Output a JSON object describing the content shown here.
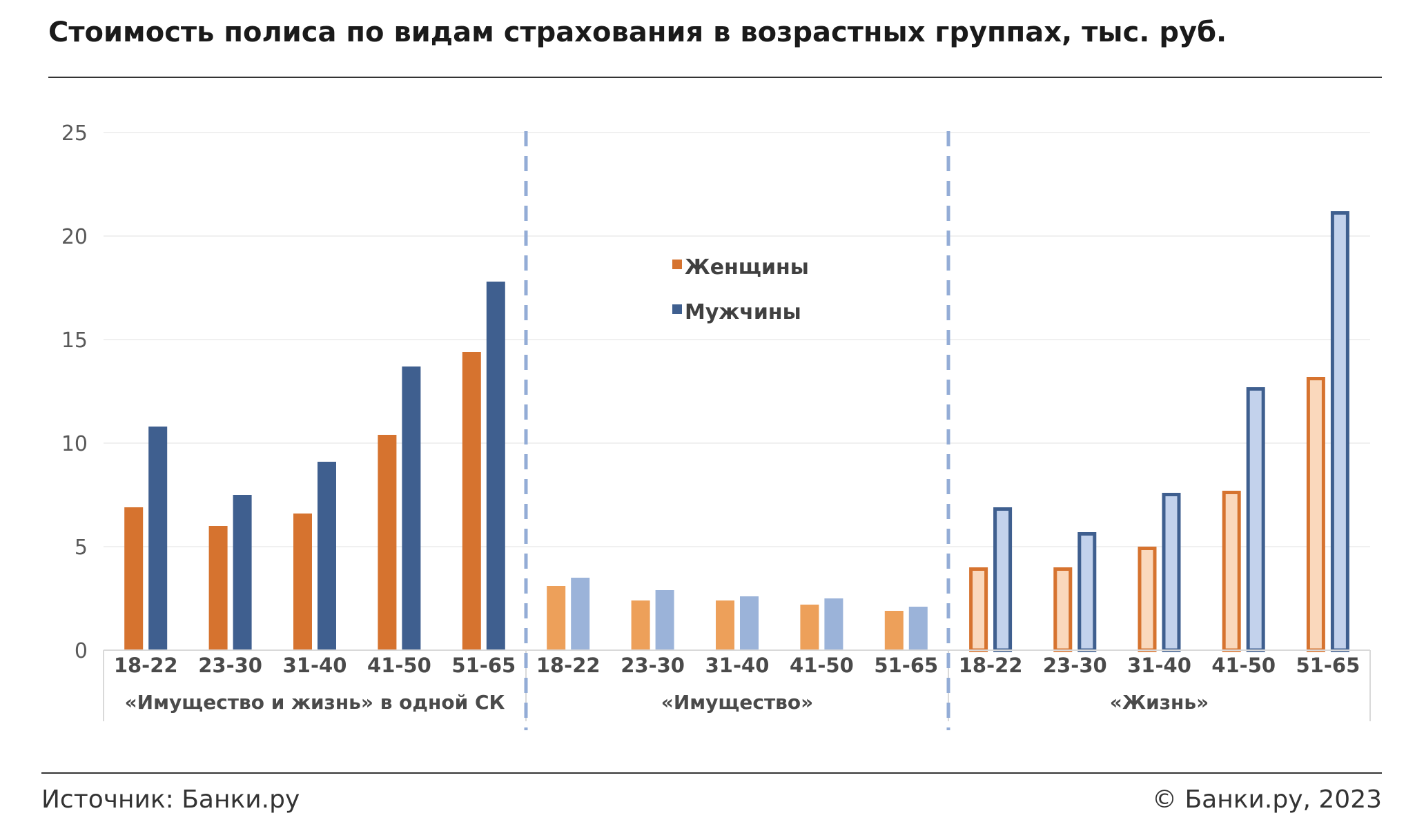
{
  "header": {
    "title": "Стоимость полиса по видам страхования в возрастных группах, тыс. руб."
  },
  "footer": {
    "source": "Источник: Банки.ру",
    "copyright": "© Банки.ру, 2023"
  },
  "colors": {
    "women_solid": "#D6732F",
    "men_solid": "#3F5F8F",
    "women_light": "#EDA05A",
    "men_light": "#9BB3D9",
    "women_fill_pale": "#FAD8BC",
    "men_fill_pale": "#C3D2EC",
    "divider": "#93ACD6",
    "grid": "#EBEBEB",
    "axis_text": "#595959",
    "cat_text": "#4A4A4A",
    "rule": "#333333"
  },
  "chart_data": {
    "type": "bar",
    "title": "Стоимость полиса по видам страхования в возрастных группах, тыс. руб.",
    "ylim": [
      0,
      25
    ],
    "yticks": [
      "0",
      "5",
      "10",
      "15",
      "20",
      "25"
    ],
    "grid": true,
    "legend_position": "top-center",
    "categories": [
      "18-22",
      "23-30",
      "31-40",
      "41-50",
      "51-65"
    ],
    "series": [
      {
        "name": "Женщины"
      },
      {
        "name": "Мужчины"
      }
    ],
    "groups": [
      {
        "label": "«Имущество и жизнь» в одной СК",
        "style": "solid",
        "values": {
          "women": [
            6.9,
            6.0,
            6.6,
            10.4,
            14.4
          ],
          "men": [
            10.8,
            7.5,
            9.1,
            13.7,
            17.8
          ]
        }
      },
      {
        "label": "«Имущество»",
        "style": "light",
        "values": {
          "women": [
            3.1,
            2.4,
            2.4,
            2.2,
            1.9
          ],
          "men": [
            3.5,
            2.9,
            2.6,
            2.5,
            2.1
          ]
        }
      },
      {
        "label": "«Жизнь»",
        "style": "outlined",
        "values": {
          "women": [
            4.0,
            4.0,
            5.0,
            7.7,
            13.2
          ],
          "men": [
            6.9,
            5.7,
            7.6,
            12.7,
            21.2
          ]
        }
      }
    ]
  }
}
